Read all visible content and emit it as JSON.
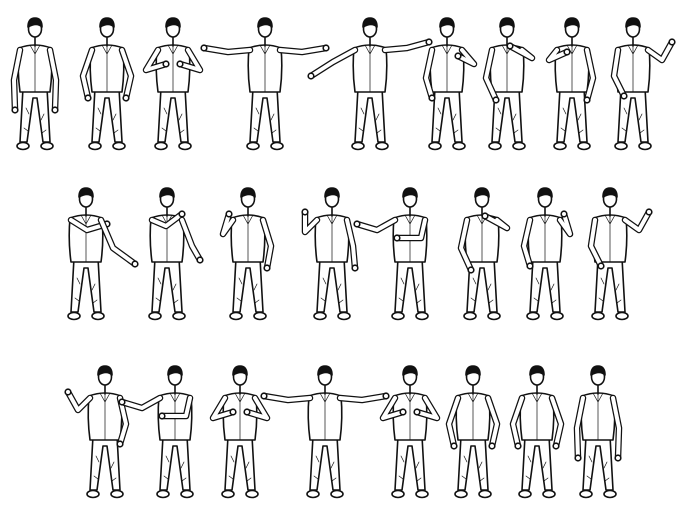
{
  "illustration": {
    "subject": "figure-sequence",
    "rows": [
      {
        "figures": [
          {
            "pose": "stand-arms-down"
          },
          {
            "pose": "hands-lifted-low"
          },
          {
            "pose": "hands-at-chest"
          },
          {
            "pose": "arms-spread-wide"
          },
          {
            "pose": "arms-diagonal-left-low"
          },
          {
            "pose": "arm-cross-chest-right"
          },
          {
            "pose": "arm-cross-high"
          },
          {
            "pose": "arm-cross-high-alt"
          },
          {
            "pose": "turn-palm-up"
          }
        ]
      },
      {
        "figures": [
          {
            "pose": "turn-left-push"
          },
          {
            "pose": "turn-left-push-alt"
          },
          {
            "pose": "palm-by-face"
          },
          {
            "pose": "palm-raised-side"
          },
          {
            "pose": "arms-reach-left"
          },
          {
            "pose": "arm-cross-high"
          },
          {
            "pose": "palm-by-face-alt"
          },
          {
            "pose": "turn-palm-up"
          }
        ]
      },
      {
        "figures": [
          {
            "pose": "turn-palm-up-left"
          },
          {
            "pose": "arms-reach-left"
          },
          {
            "pose": "hands-at-chest"
          },
          {
            "pose": "arms-spread-wide"
          },
          {
            "pose": "hands-at-chest"
          },
          {
            "pose": "hands-lifted-low"
          },
          {
            "pose": "hands-lifted-low"
          },
          {
            "pose": "stand-arms-down"
          }
        ]
      }
    ]
  }
}
